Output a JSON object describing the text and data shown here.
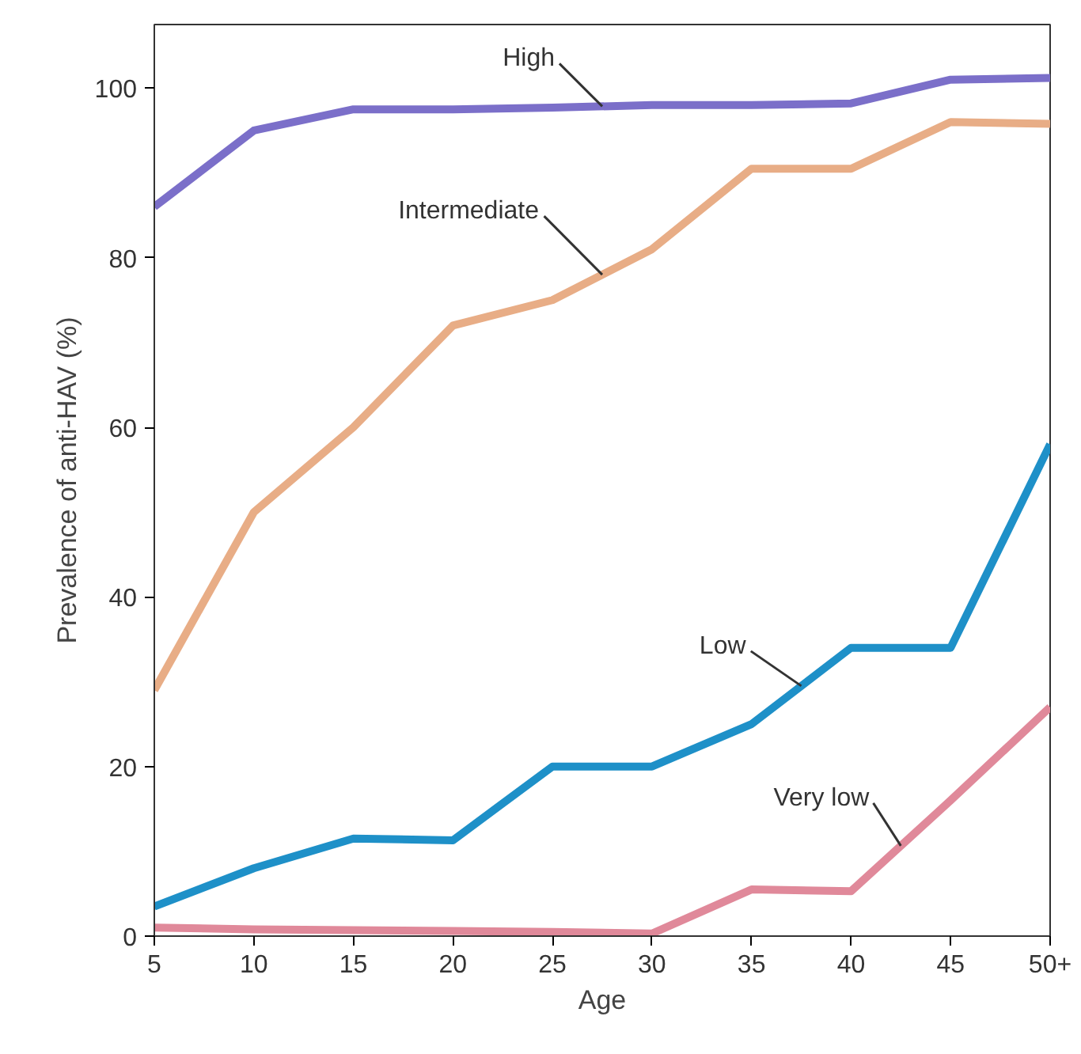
{
  "chart_data": {
    "type": "line",
    "xlabel": "Age",
    "ylabel": "Prevalence of anti-HAV (%)",
    "x": [
      5,
      10,
      15,
      20,
      25,
      30,
      35,
      40,
      45,
      50
    ],
    "series": [
      {
        "name": "High",
        "color": "#7b6fc9",
        "values": [
          86,
          95,
          97.5,
          97.5,
          97.7,
          98,
          98,
          98.2,
          101,
          101.2
        ]
      },
      {
        "name": "Intermediate",
        "color": "#e8ad86",
        "values": [
          29,
          50,
          60,
          72,
          75,
          81,
          90.5,
          90.5,
          96,
          95.8
        ]
      },
      {
        "name": "Low",
        "color": "#1e90c8",
        "values": [
          3.5,
          8,
          11.5,
          11.3,
          20,
          20,
          25,
          34,
          34,
          58
        ]
      },
      {
        "name": "Very low",
        "color": "#e0899a",
        "values": [
          1,
          0.8,
          0.7,
          0.6,
          0.5,
          0.3,
          5.5,
          5.3,
          16,
          27
        ]
      }
    ],
    "xlim": [
      5,
      50
    ],
    "ylim": [
      0,
      107.5
    ],
    "xticks": [
      5,
      10,
      15,
      20,
      25,
      30,
      35,
      40,
      45,
      {
        "value": 50,
        "label": "50+"
      }
    ],
    "yticks": [
      0,
      20,
      40,
      60,
      80,
      100
    ],
    "grid": false,
    "legend": false,
    "marker": "none",
    "line_style": "solid"
  }
}
